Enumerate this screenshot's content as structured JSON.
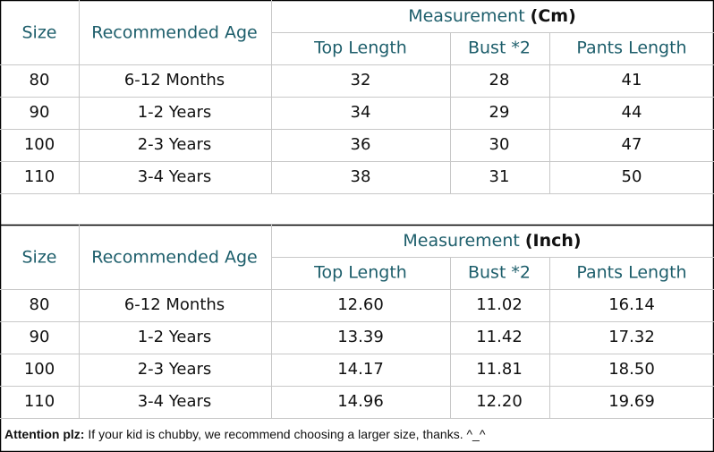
{
  "tables": [
    {
      "header": {
        "size": "Size",
        "age": "Recommended Age",
        "measurement": "Measurement",
        "unit": "(Cm)",
        "columns": [
          "Top Length",
          "Bust *2",
          "Pants Length"
        ]
      },
      "rows": [
        [
          "80",
          "6-12 Months",
          "32",
          "28",
          "41"
        ],
        [
          "90",
          "1-2 Years",
          "34",
          "29",
          "44"
        ],
        [
          "100",
          "2-3 Years",
          "36",
          "30",
          "47"
        ],
        [
          "110",
          "3-4 Years",
          "38",
          "31",
          "50"
        ]
      ]
    },
    {
      "header": {
        "size": "Size",
        "age": "Recommended Age",
        "measurement": "Measurement",
        "unit": "(Inch)",
        "columns": [
          "Top Length",
          "Bust *2",
          "Pants Length"
        ]
      },
      "rows": [
        [
          "80",
          "6-12 Months",
          "12.60",
          "11.02",
          "16.14"
        ],
        [
          "90",
          "1-2 Years",
          "13.39",
          "11.42",
          "17.32"
        ],
        [
          "100",
          "2-3 Years",
          "14.17",
          "11.81",
          "18.50"
        ],
        [
          "110",
          "3-4 Years",
          "14.96",
          "12.20",
          "19.69"
        ]
      ]
    }
  ],
  "note": {
    "label": "Attention plz:",
    "text": "If your kid is chubby, we recommend choosing a larger size, thanks. ^_^"
  }
}
